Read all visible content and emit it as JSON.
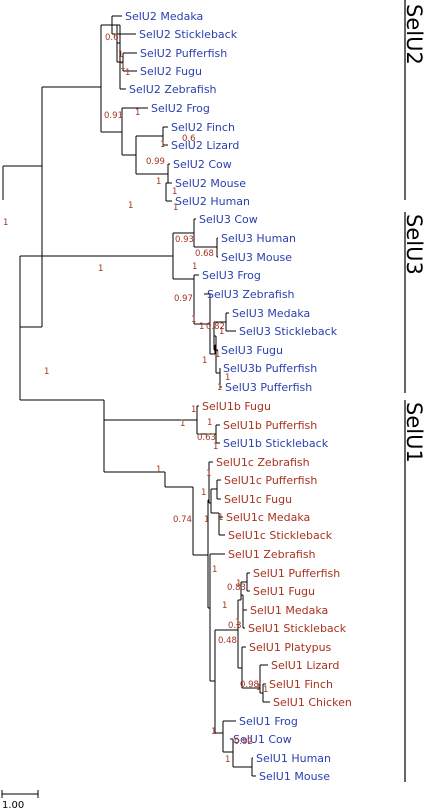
{
  "colors": {
    "blue": "#2a3fae",
    "red": "#a8321f",
    "branch": "#000000"
  },
  "scale_bar": {
    "label": "1.00"
  },
  "clades": [
    {
      "label": "SelU2"
    },
    {
      "label": "SelU3"
    },
    {
      "label": "SelU1"
    }
  ],
  "taxa": [
    {
      "label": "SelU2 Medaka",
      "color": "blue"
    },
    {
      "label": "SelU2 Stickleback",
      "color": "blue"
    },
    {
      "label": "SelU2 Pufferfish",
      "color": "blue"
    },
    {
      "label": "SelU2 Fugu",
      "color": "blue"
    },
    {
      "label": "SelU2 Zebrafish",
      "color": "blue"
    },
    {
      "label": "SelU2 Frog",
      "color": "blue"
    },
    {
      "label": "SelU2 Finch",
      "color": "blue"
    },
    {
      "label": "SelU2 Lizard",
      "color": "blue"
    },
    {
      "label": "SelU2 Cow",
      "color": "blue"
    },
    {
      "label": "SelU2 Mouse",
      "color": "blue"
    },
    {
      "label": "SelU2 Human",
      "color": "blue"
    },
    {
      "label": "SelU3 Cow",
      "color": "blue"
    },
    {
      "label": "SelU3 Human",
      "color": "blue"
    },
    {
      "label": "SelU3 Mouse",
      "color": "blue"
    },
    {
      "label": "SelU3 Frog",
      "color": "blue"
    },
    {
      "label": "SelU3 Zebrafish",
      "color": "blue"
    },
    {
      "label": "SelU3 Medaka",
      "color": "blue"
    },
    {
      "label": "SelU3 Stickleback",
      "color": "blue"
    },
    {
      "label": "SelU3 Fugu",
      "color": "blue"
    },
    {
      "label": "SelU3b Pufferfish",
      "color": "blue"
    },
    {
      "label": "SelU3 Pufferfish",
      "color": "blue"
    },
    {
      "label": "SelU1b Fugu",
      "color": "red"
    },
    {
      "label": "SelU1b Pufferfish",
      "color": "red"
    },
    {
      "label": "SelU1b Stickleback",
      "color": "blue"
    },
    {
      "label": "SelU1c Zebrafish",
      "color": "red"
    },
    {
      "label": "SelU1c Pufferfish",
      "color": "red"
    },
    {
      "label": "SelU1c Fugu",
      "color": "red"
    },
    {
      "label": "SelU1c Medaka",
      "color": "red"
    },
    {
      "label": "SelU1c Stickleback",
      "color": "red"
    },
    {
      "label": "SelU1 Zebrafish",
      "color": "red"
    },
    {
      "label": "SelU1 Pufferfish",
      "color": "red"
    },
    {
      "label": "SelU1 Fugu",
      "color": "red"
    },
    {
      "label": "SelU1 Medaka",
      "color": "red"
    },
    {
      "label": "SelU1 Stickleback",
      "color": "red"
    },
    {
      "label": "SelU1 Platypus",
      "color": "red"
    },
    {
      "label": "SelU1 Lizard",
      "color": "red"
    },
    {
      "label": "SelU1 Finch",
      "color": "red"
    },
    {
      "label": "SelU1 Chicken",
      "color": "red"
    },
    {
      "label": "SelU1 Frog",
      "color": "blue"
    },
    {
      "label": "SelU1 Cow",
      "color": "blue"
    },
    {
      "label": "SelU1 Human",
      "color": "blue"
    },
    {
      "label": "SelU1 Mouse",
      "color": "blue"
    }
  ],
  "supports": [
    "0.6",
    "1",
    "1",
    "1",
    "0.91",
    "1",
    "1",
    "0.6",
    "0.99",
    "1",
    "1",
    "1",
    "1",
    "0.93",
    "0.68",
    "1",
    "1",
    "0.97",
    "1",
    "1",
    "0.82",
    "1",
    "1",
    "1",
    "1",
    "1",
    "1",
    "1",
    "1",
    "0.63",
    "1",
    "1",
    "1",
    "1",
    "1",
    "0.74",
    "1",
    "1",
    "1",
    "0.83",
    "1",
    "0.3",
    "1",
    "0.48",
    "0.98",
    "1",
    "1",
    "1",
    "0.92",
    "1",
    "1",
    "1"
  ]
}
